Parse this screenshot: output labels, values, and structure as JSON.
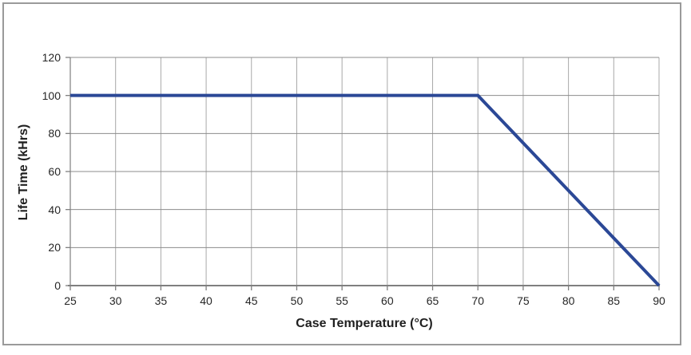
{
  "page": {
    "background": "#ffffff"
  },
  "colors": {
    "frame": "#9a9a9a",
    "axis": "#7f7f7f",
    "grid_horizontal": "#8c8c8c",
    "grid_vertical": "#a8a8a8",
    "line": "#2b4896",
    "text": "#1f1f1f"
  },
  "chart_data": {
    "type": "line",
    "xlabel": "Case Temperature (°C)",
    "ylabel": "Life Time (kHrs)",
    "xlim": [
      25,
      90
    ],
    "ylim": [
      0,
      120
    ],
    "x_ticks": [
      25,
      30,
      35,
      40,
      45,
      50,
      55,
      60,
      65,
      70,
      75,
      80,
      85,
      90
    ],
    "y_ticks": [
      0,
      20,
      40,
      60,
      80,
      100,
      120
    ],
    "grid": true,
    "legend": false,
    "series": [
      {
        "points": [
          [
            25,
            100
          ],
          [
            70,
            100
          ],
          [
            90,
            0
          ]
        ],
        "color": "#2b4896",
        "stroke_width": 4
      }
    ]
  }
}
